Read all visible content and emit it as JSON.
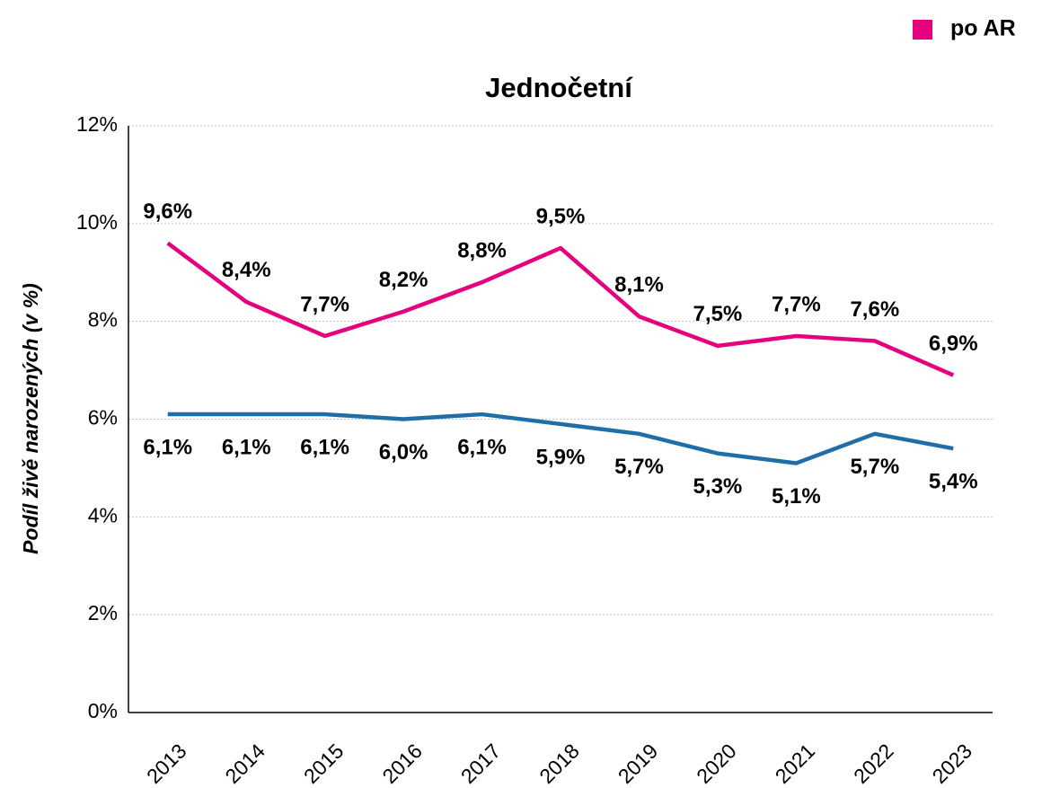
{
  "chart_data": {
    "type": "line",
    "title": "Jednočetní",
    "y_label": "Podíl živě narozených (v %)",
    "categories": [
      "2013",
      "2014",
      "2015",
      "2016",
      "2017",
      "2018",
      "2019",
      "2020",
      "2021",
      "2022",
      "2023"
    ],
    "series": [
      {
        "name": "po AR",
        "color": "#e5007d",
        "label_color": "#b8006a",
        "values": [
          9.6,
          8.4,
          7.7,
          8.2,
          8.8,
          9.5,
          8.1,
          7.5,
          7.7,
          7.6,
          6.9
        ],
        "value_labels": [
          "9,6%",
          "8,4%",
          "7,7%",
          "8,2%",
          "8,8%",
          "9,5%",
          "8,1%",
          "7,5%",
          "7,7%",
          "7,6%",
          "6,9%"
        ]
      },
      {
        "color": "#1f6ea8",
        "label_color": "#1a5f8f",
        "values": [
          6.1,
          6.1,
          6.1,
          6.0,
          6.1,
          5.9,
          5.7,
          5.3,
          5.1,
          5.7,
          5.4
        ],
        "value_labels": [
          "6,1%",
          "6,1%",
          "6,1%",
          "6,0%",
          "6,1%",
          "5,9%",
          "5,7%",
          "5,3%",
          "5,1%",
          "5,7%",
          "5,4%"
        ]
      }
    ],
    "ylim": [
      0,
      12
    ],
    "yticks": [
      {
        "value": 0,
        "label": "0%"
      },
      {
        "value": 2,
        "label": "2%"
      },
      {
        "value": 4,
        "label": "4%"
      },
      {
        "value": 6,
        "label": "6%"
      },
      {
        "value": 8,
        "label": "8%"
      },
      {
        "value": 10,
        "label": "10%"
      },
      {
        "value": 12,
        "label": "12%"
      }
    ],
    "grid": true,
    "legend": "top-right"
  }
}
